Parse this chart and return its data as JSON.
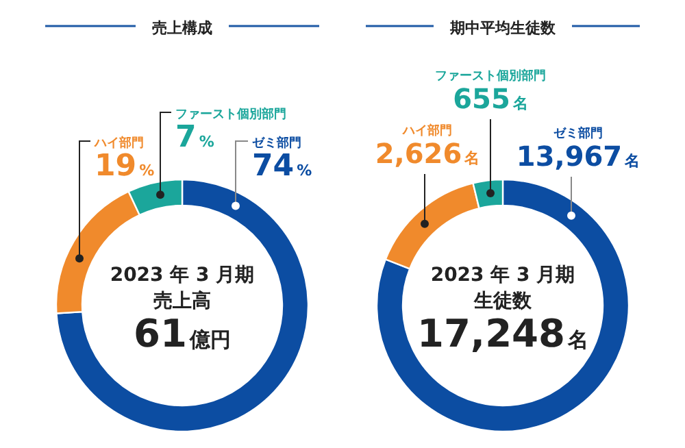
{
  "chart_data": [
    {
      "type": "donut",
      "title": "売上構成",
      "categories": [
        "ゼミ部門",
        "ハイ部門",
        "ファースト個別部門"
      ],
      "values": [
        74,
        19,
        7
      ],
      "colors": [
        "#0c4da2",
        "#f08a2c",
        "#1ba69b"
      ],
      "value_labels": [
        "74%",
        "19%",
        "7%"
      ],
      "annotations": [
        "2023 年 3 月期",
        "売上高",
        "61億円"
      ]
    },
    {
      "type": "donut",
      "title": "期中平均生徒数",
      "categories": [
        "ゼミ部門",
        "ハイ部門",
        "ファースト個別部門"
      ],
      "values": [
        13967,
        2626,
        655
      ],
      "colors": [
        "#0c4da2",
        "#f08a2c",
        "#1ba69b"
      ],
      "value_labels": [
        "13,967名",
        "2,626名",
        "655名"
      ],
      "annotations": [
        "2023 年 3 月期",
        "生徒数",
        "17,248名"
      ]
    }
  ]
}
